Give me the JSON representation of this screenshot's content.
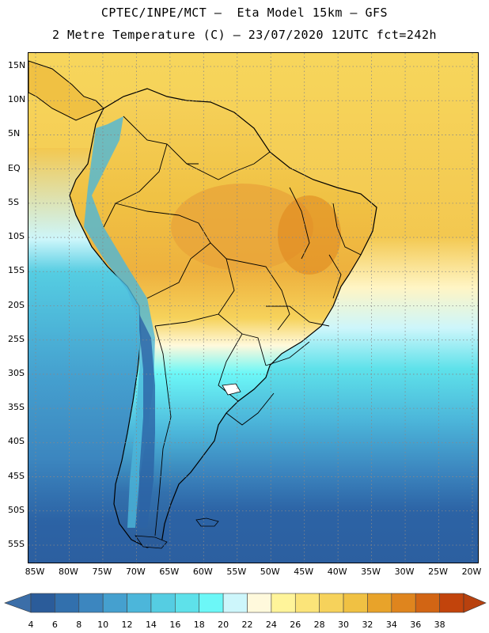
{
  "header": {
    "title_line1": "CPTEC/INPE/MCT –  Eta Model 15km – GFS",
    "title_line2": "2 Metre Temperature (C) – 23/07/2020 12UTC fct=242h"
  },
  "map": {
    "lat_labels": [
      "15N",
      "10N",
      "5N",
      "EQ",
      "5S",
      "10S",
      "15S",
      "20S",
      "25S",
      "30S",
      "35S",
      "40S",
      "45S",
      "50S",
      "55S"
    ],
    "lon_labels": [
      "85W",
      "80W",
      "75W",
      "70W",
      "65W",
      "60W",
      "55W",
      "50W",
      "45W",
      "40W",
      "35W",
      "30W",
      "25W",
      "20W"
    ],
    "colors": {
      "ocean_south": "#2c63a5",
      "ocean_mid": "#4aaed0",
      "ocean_cyan": "#56d9e8",
      "warm_ocean": "#f7d65c",
      "land_warm": "#f3c04a",
      "land_hot": "#e8a33a",
      "land_cool": "#3f86c4",
      "coast": "#000000",
      "grid": "#888888"
    }
  },
  "colorbar": {
    "labels": [
      "4",
      "6",
      "8",
      "10",
      "12",
      "14",
      "16",
      "18",
      "20",
      "22",
      "24",
      "26",
      "28",
      "30",
      "32",
      "34",
      "36",
      "38"
    ],
    "colors": [
      "#2b5c9a",
      "#3270ad",
      "#3c86bf",
      "#45a0cf",
      "#4cb6da",
      "#55cde2",
      "#5ee1ea",
      "#6cf7f7",
      "#cdf6fb",
      "#fff9dc",
      "#fff49a",
      "#fbe479",
      "#f6d25b",
      "#f0c143",
      "#e8a32a",
      "#df851e",
      "#d26514",
      "#c2440c"
    ],
    "left_arrow_color": "#3b6ea8",
    "right_arrow_color": "#b8410e"
  }
}
